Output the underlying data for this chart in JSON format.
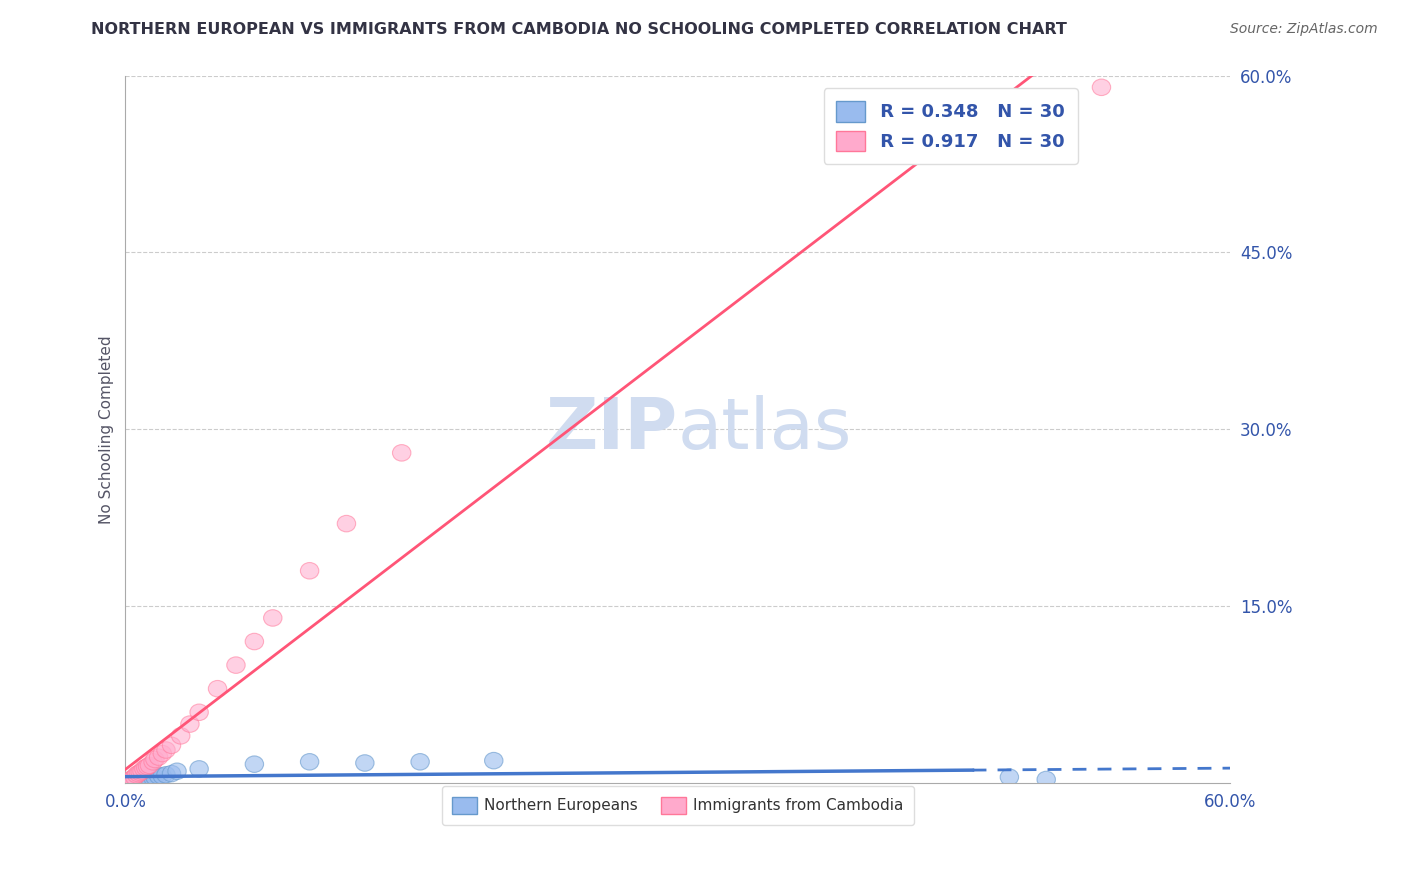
{
  "title": "NORTHERN EUROPEAN VS IMMIGRANTS FROM CAMBODIA NO SCHOOLING COMPLETED CORRELATION CHART",
  "source": "Source: ZipAtlas.com",
  "ylabel": "No Schooling Completed",
  "xlim": [
    0.0,
    0.6
  ],
  "ylim": [
    0.0,
    0.6
  ],
  "xtick_vals": [
    0.0,
    0.6
  ],
  "xtick_labels": [
    "0.0%",
    "60.0%"
  ],
  "ytick_vals_right": [
    0.15,
    0.3,
    0.45,
    0.6
  ],
  "ytick_labels_right": [
    "15.0%",
    "30.0%",
    "45.0%",
    "60.0%"
  ],
  "gridline_y": [
    0.15,
    0.3,
    0.45,
    0.6
  ],
  "blue_color": "#99BBEE",
  "blue_edge_color": "#6699CC",
  "pink_color": "#FFAACC",
  "pink_edge_color": "#FF7799",
  "blue_line_color": "#4477CC",
  "pink_line_color": "#FF5577",
  "title_color": "#333344",
  "source_color": "#666666",
  "label_blue": "Northern Europeans",
  "label_pink": "Immigrants from Cambodia",
  "legend_R1": "R = 0.348",
  "legend_N1": "N = 30",
  "legend_R2": "R = 0.917",
  "legend_N2": "N = 30",
  "watermark_color": "#D0DCF0",
  "background_color": "#FFFFFF",
  "blue_x": [
    0.001,
    0.002,
    0.003,
    0.003,
    0.004,
    0.005,
    0.005,
    0.006,
    0.007,
    0.008,
    0.009,
    0.01,
    0.011,
    0.012,
    0.013,
    0.015,
    0.016,
    0.018,
    0.02,
    0.022,
    0.025,
    0.028,
    0.04,
    0.07,
    0.1,
    0.13,
    0.16,
    0.2,
    0.48,
    0.5
  ],
  "blue_y": [
    0.001,
    0.001,
    0.001,
    0.002,
    0.001,
    0.001,
    0.002,
    0.002,
    0.002,
    0.002,
    0.003,
    0.003,
    0.003,
    0.004,
    0.004,
    0.004,
    0.005,
    0.006,
    0.006,
    0.007,
    0.008,
    0.01,
    0.012,
    0.016,
    0.018,
    0.017,
    0.018,
    0.019,
    0.005,
    0.003
  ],
  "pink_x": [
    0.001,
    0.002,
    0.003,
    0.004,
    0.005,
    0.006,
    0.007,
    0.008,
    0.009,
    0.01,
    0.011,
    0.012,
    0.013,
    0.015,
    0.016,
    0.018,
    0.02,
    0.022,
    0.025,
    0.03,
    0.035,
    0.04,
    0.05,
    0.06,
    0.07,
    0.08,
    0.1,
    0.12,
    0.15,
    0.53
  ],
  "pink_y": [
    0.001,
    0.002,
    0.003,
    0.004,
    0.005,
    0.007,
    0.008,
    0.009,
    0.01,
    0.012,
    0.013,
    0.014,
    0.015,
    0.018,
    0.02,
    0.022,
    0.025,
    0.028,
    0.032,
    0.04,
    0.05,
    0.06,
    0.08,
    0.1,
    0.12,
    0.14,
    0.18,
    0.22,
    0.28,
    0.59
  ],
  "blue_line_x0": 0.0,
  "blue_line_x_solid_end": 0.46,
  "blue_line_x_dash_end": 0.6,
  "pink_line_x0": 0.0,
  "pink_line_x1": 0.6
}
